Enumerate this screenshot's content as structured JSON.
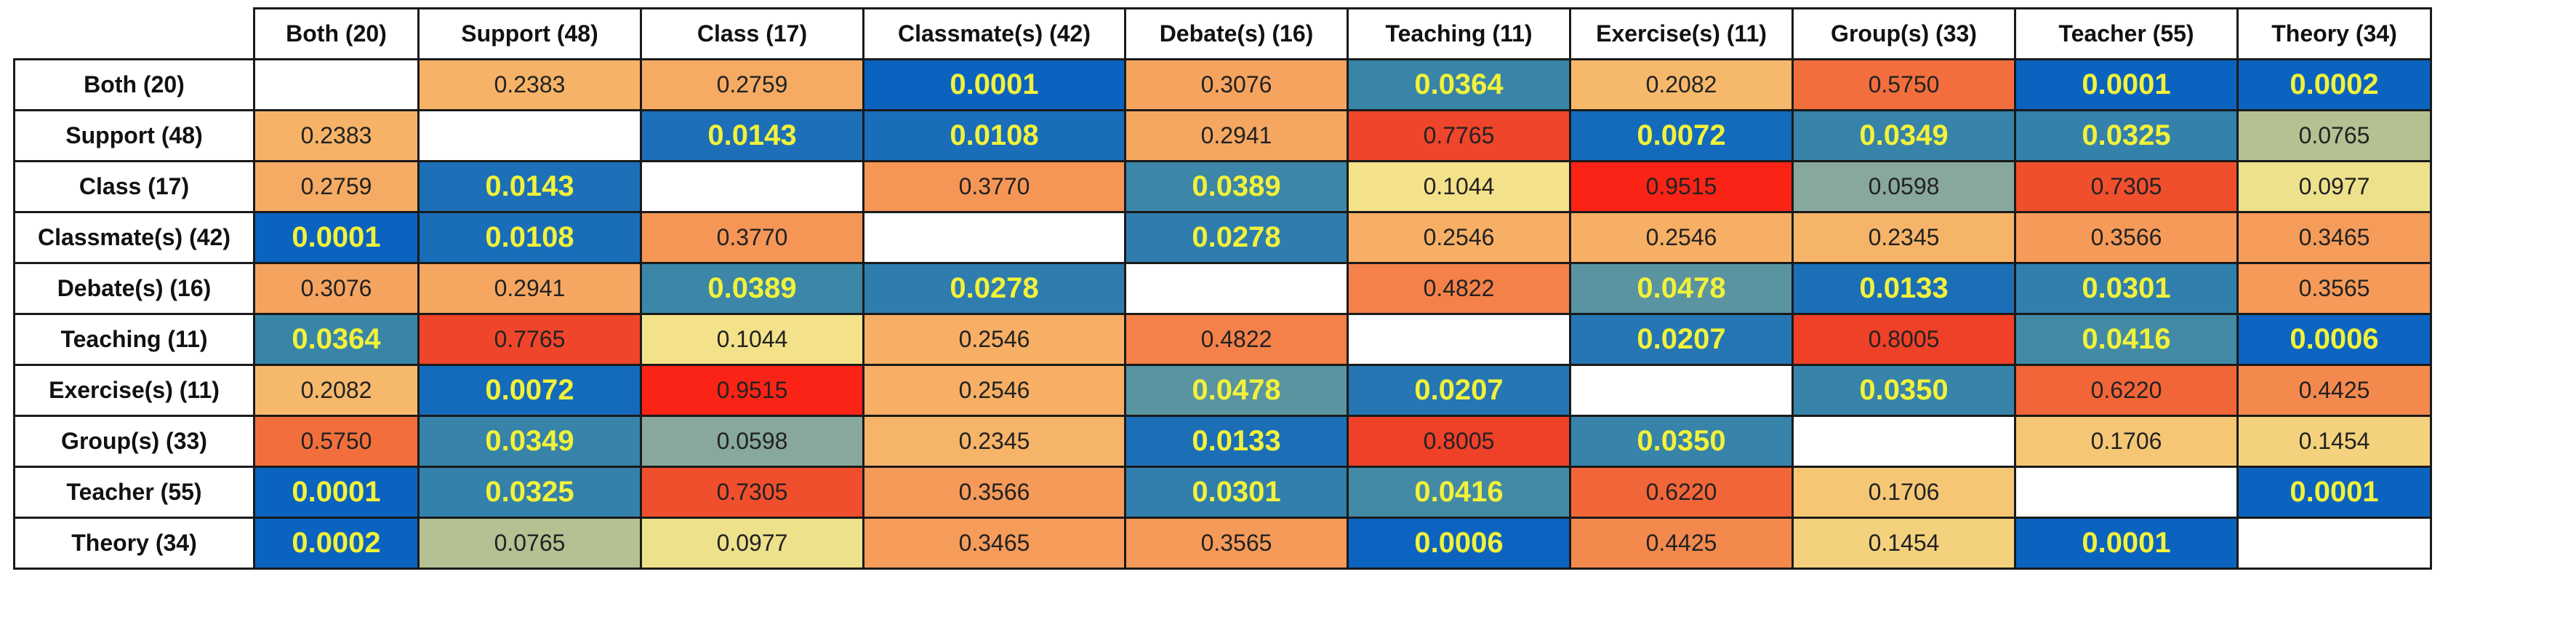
{
  "chart_data": {
    "type": "heatmap",
    "title": "",
    "significance_threshold": 0.05,
    "labels": [
      "Both (20)",
      "Support (48)",
      "Class (17)",
      "Classmate(s) (42)",
      "Debate(s) (16)",
      "Teaching (11)",
      "Exercise(s) (11)",
      "Group(s) (33)",
      "Teacher (55)",
      "Theory (34)"
    ],
    "values": [
      [
        null,
        0.2383,
        0.2759,
        0.0001,
        0.3076,
        0.0364,
        0.2082,
        0.575,
        0.0001,
        0.0002
      ],
      [
        0.2383,
        null,
        0.0143,
        0.0108,
        0.2941,
        0.7765,
        0.0072,
        0.0349,
        0.0325,
        0.0765
      ],
      [
        0.2759,
        0.0143,
        null,
        0.377,
        0.0389,
        0.1044,
        0.9515,
        0.0598,
        0.7305,
        0.0977
      ],
      [
        0.0001,
        0.0108,
        0.377,
        null,
        0.0278,
        0.2546,
        0.2546,
        0.2345,
        0.3566,
        0.3465
      ],
      [
        0.3076,
        0.2941,
        0.0389,
        0.0278,
        null,
        0.4822,
        0.0478,
        0.0133,
        0.0301,
        0.3565
      ],
      [
        0.0364,
        0.7765,
        0.1044,
        0.2546,
        0.4822,
        null,
        0.0207,
        0.8005,
        0.0416,
        0.0006
      ],
      [
        0.2082,
        0.0072,
        0.9515,
        0.2546,
        0.0478,
        0.0207,
        null,
        0.035,
        0.622,
        0.4425
      ],
      [
        0.575,
        0.0349,
        0.0598,
        0.2345,
        0.0133,
        0.8005,
        0.035,
        null,
        0.1706,
        0.1454
      ],
      [
        0.0001,
        0.0325,
        0.7305,
        0.3566,
        0.0301,
        0.0416,
        0.622,
        0.1706,
        null,
        0.0001
      ],
      [
        0.0002,
        0.0765,
        0.0977,
        0.3465,
        0.3565,
        0.0006,
        0.4425,
        0.1454,
        0.0001,
        null
      ]
    ],
    "color_stops": [
      {
        "v": 0.0,
        "c": "#0b63c0"
      },
      {
        "v": 0.04,
        "c": "#3d88a6"
      },
      {
        "v": 0.06,
        "c": "#88a89a"
      },
      {
        "v": 0.1,
        "c": "#f3e48a"
      },
      {
        "v": 0.2,
        "c": "#f6bb6c"
      },
      {
        "v": 0.35,
        "c": "#f59b5a"
      },
      {
        "v": 0.6,
        "c": "#f26a3a"
      },
      {
        "v": 0.8,
        "c": "#ef4028"
      },
      {
        "v": 1.0,
        "c": "#ff1a10"
      }
    ],
    "significant_text_color": "#f2f23a",
    "normal_text_color": "#222222"
  }
}
